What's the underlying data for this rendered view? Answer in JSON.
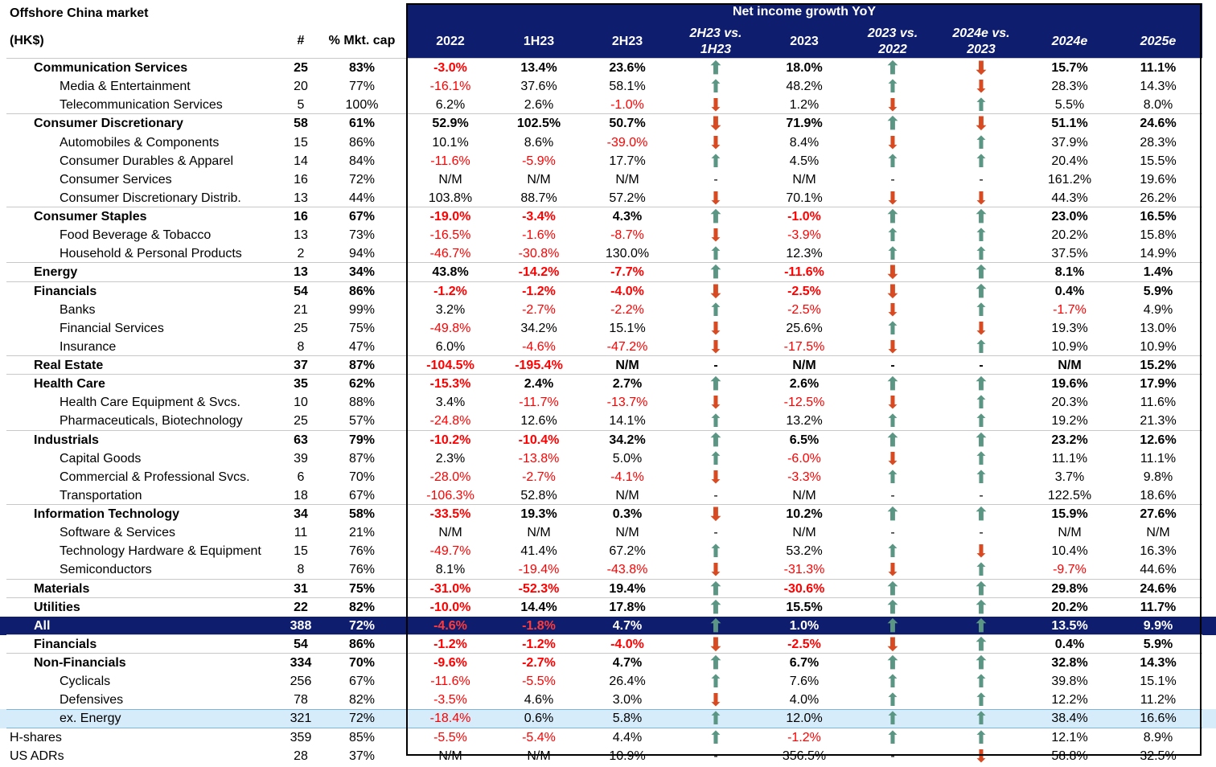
{
  "title": "Offshore China market",
  "unit": "(HK$)",
  "headers": {
    "count": "#",
    "mkt_cap": "% Mkt. cap",
    "super": "Net income growth YoY",
    "cols": [
      "2022",
      "1H23",
      "2H23",
      "2H23 vs.\n1H23",
      "2023",
      "2023 vs.\n2022",
      "2024e vs.\n2023",
      "2024e",
      "2025e"
    ]
  },
  "colors": {
    "header_bg": "#0f1d6e",
    "negative": "#ff0000",
    "up_arrow": "#5a9683",
    "down_arrow": "#d84a22",
    "highlight": "#d6ecfa"
  },
  "rows": [
    {
      "type": "sec",
      "label": "Communication Services",
      "count": "25",
      "mkt": "83%",
      "y2022": "-3.0%",
      "h1": "13.4%",
      "h2": "23.6%",
      "a1": "up",
      "y2023": "18.0%",
      "a2": "up",
      "a3": "down",
      "e24": "15.7%",
      "e25": "11.1%"
    },
    {
      "type": "sub",
      "label": "Media & Entertainment",
      "count": "20",
      "mkt": "77%",
      "y2022": "-16.1%",
      "h1": "37.6%",
      "h2": "58.1%",
      "a1": "up",
      "y2023": "48.2%",
      "a2": "up",
      "a3": "down",
      "e24": "28.3%",
      "e25": "14.3%"
    },
    {
      "type": "sub",
      "label": "Telecommunication Services",
      "count": "5",
      "mkt": "100%",
      "y2022": "6.2%",
      "h1": "2.6%",
      "h2": "-1.0%",
      "a1": "down",
      "y2023": "1.2%",
      "a2": "down",
      "a3": "up",
      "e24": "5.5%",
      "e25": "8.0%"
    },
    {
      "type": "sec",
      "label": "Consumer Discretionary",
      "count": "58",
      "mkt": "61%",
      "y2022": "52.9%",
      "h1": "102.5%",
      "h2": "50.7%",
      "a1": "down",
      "y2023": "71.9%",
      "a2": "up",
      "a3": "down",
      "e24": "51.1%",
      "e25": "24.6%"
    },
    {
      "type": "sub",
      "label": "Automobiles & Components",
      "count": "15",
      "mkt": "86%",
      "y2022": "10.1%",
      "h1": "8.6%",
      "h2": "-39.0%",
      "a1": "down",
      "y2023": "8.4%",
      "a2": "down",
      "a3": "up",
      "e24": "37.9%",
      "e25": "28.3%"
    },
    {
      "type": "sub",
      "label": "Consumer Durables & Apparel",
      "count": "14",
      "mkt": "84%",
      "y2022": "-11.6%",
      "h1": "-5.9%",
      "h2": "17.7%",
      "a1": "up",
      "y2023": "4.5%",
      "a2": "up",
      "a3": "up",
      "e24": "20.4%",
      "e25": "15.5%"
    },
    {
      "type": "sub",
      "label": "Consumer Services",
      "count": "16",
      "mkt": "72%",
      "y2022": "N/M",
      "h1": "N/M",
      "h2": "N/M",
      "a1": "-",
      "y2023": "N/M",
      "a2": "-",
      "a3": "-",
      "e24": "161.2%",
      "e25": "19.6%"
    },
    {
      "type": "sub",
      "label": "Consumer Discretionary Distrib.",
      "count": "13",
      "mkt": "44%",
      "y2022": "103.8%",
      "h1": "88.7%",
      "h2": "57.2%",
      "a1": "down",
      "y2023": "70.1%",
      "a2": "down",
      "a3": "down",
      "e24": "44.3%",
      "e25": "26.2%"
    },
    {
      "type": "sec",
      "label": "Consumer Staples",
      "count": "16",
      "mkt": "67%",
      "y2022": "-19.0%",
      "h1": "-3.4%",
      "h2": "4.3%",
      "a1": "up",
      "y2023": "-1.0%",
      "a2": "up",
      "a3": "up",
      "e24": "23.0%",
      "e25": "16.5%"
    },
    {
      "type": "sub",
      "label": "Food Beverage & Tobacco",
      "count": "13",
      "mkt": "73%",
      "y2022": "-16.5%",
      "h1": "-1.6%",
      "h2": "-8.7%",
      "a1": "down",
      "y2023": "-3.9%",
      "a2": "up",
      "a3": "up",
      "e24": "20.2%",
      "e25": "15.8%"
    },
    {
      "type": "sub",
      "label": "Household & Personal Products",
      "count": "2",
      "mkt": "94%",
      "y2022": "-46.7%",
      "h1": "-30.8%",
      "h2": "130.0%",
      "a1": "up",
      "y2023": "12.3%",
      "a2": "up",
      "a3": "up",
      "e24": "37.5%",
      "e25": "14.9%"
    },
    {
      "type": "sec",
      "label": "Energy",
      "count": "13",
      "mkt": "34%",
      "y2022": "43.8%",
      "h1": "-14.2%",
      "h2": "-7.7%",
      "a1": "up",
      "y2023": "-11.6%",
      "a2": "down",
      "a3": "up",
      "e24": "8.1%",
      "e25": "1.4%"
    },
    {
      "type": "sec",
      "label": "Financials",
      "count": "54",
      "mkt": "86%",
      "y2022": "-1.2%",
      "h1": "-1.2%",
      "h2": "-4.0%",
      "a1": "down",
      "y2023": "-2.5%",
      "a2": "down",
      "a3": "up",
      "e24": "0.4%",
      "e25": "5.9%"
    },
    {
      "type": "sub",
      "label": "Banks",
      "count": "21",
      "mkt": "99%",
      "y2022": "3.2%",
      "h1": "-2.7%",
      "h2": "-2.2%",
      "a1": "up",
      "y2023": "-2.5%",
      "a2": "down",
      "a3": "up",
      "e24": "-1.7%",
      "e25": "4.9%"
    },
    {
      "type": "sub",
      "label": "Financial Services",
      "count": "25",
      "mkt": "75%",
      "y2022": "-49.8%",
      "h1": "34.2%",
      "h2": "15.1%",
      "a1": "down",
      "y2023": "25.6%",
      "a2": "up",
      "a3": "down",
      "e24": "19.3%",
      "e25": "13.0%"
    },
    {
      "type": "sub",
      "label": "Insurance",
      "count": "8",
      "mkt": "47%",
      "y2022": "6.0%",
      "h1": "-4.6%",
      "h2": "-47.2%",
      "a1": "down",
      "y2023": "-17.5%",
      "a2": "down",
      "a3": "up",
      "e24": "10.9%",
      "e25": "10.9%"
    },
    {
      "type": "sec",
      "label": "Real Estate",
      "count": "37",
      "mkt": "87%",
      "y2022": "-104.5%",
      "h1": "-195.4%",
      "h2": "N/M",
      "a1": "-",
      "y2023": "N/M",
      "a2": "-",
      "a3": "-",
      "e24": "N/M",
      "e25": "15.2%"
    },
    {
      "type": "sec",
      "label": "Health Care",
      "count": "35",
      "mkt": "62%",
      "y2022": "-15.3%",
      "h1": "2.4%",
      "h2": "2.7%",
      "a1": "up",
      "y2023": "2.6%",
      "a2": "up",
      "a3": "up",
      "e24": "19.6%",
      "e25": "17.9%"
    },
    {
      "type": "sub",
      "label": "Health Care Equipment & Svcs.",
      "count": "10",
      "mkt": "88%",
      "y2022": "3.4%",
      "h1": "-11.7%",
      "h2": "-13.7%",
      "a1": "down",
      "y2023": "-12.5%",
      "a2": "down",
      "a3": "up",
      "e24": "20.3%",
      "e25": "11.6%"
    },
    {
      "type": "sub",
      "label": "Pharmaceuticals, Biotechnology",
      "count": "25",
      "mkt": "57%",
      "y2022": "-24.8%",
      "h1": "12.6%",
      "h2": "14.1%",
      "a1": "up",
      "y2023": "13.2%",
      "a2": "up",
      "a3": "up",
      "e24": "19.2%",
      "e25": "21.3%"
    },
    {
      "type": "sec",
      "label": "Industrials",
      "count": "63",
      "mkt": "79%",
      "y2022": "-10.2%",
      "h1": "-10.4%",
      "h2": "34.2%",
      "a1": "up",
      "y2023": "6.5%",
      "a2": "up",
      "a3": "up",
      "e24": "23.2%",
      "e25": "12.6%"
    },
    {
      "type": "sub",
      "label": "Capital Goods",
      "count": "39",
      "mkt": "87%",
      "y2022": "2.3%",
      "h1": "-13.8%",
      "h2": "5.0%",
      "a1": "up",
      "y2023": "-6.0%",
      "a2": "down",
      "a3": "up",
      "e24": "11.1%",
      "e25": "11.1%"
    },
    {
      "type": "sub",
      "label": "Commercial & Professional Svcs.",
      "count": "6",
      "mkt": "70%",
      "y2022": "-28.0%",
      "h1": "-2.7%",
      "h2": "-4.1%",
      "a1": "down",
      "y2023": "-3.3%",
      "a2": "up",
      "a3": "up",
      "e24": "3.7%",
      "e25": "9.8%"
    },
    {
      "type": "sub",
      "label": "Transportation",
      "count": "18",
      "mkt": "67%",
      "y2022": "-106.3%",
      "h1": "52.8%",
      "h2": "N/M",
      "a1": "-",
      "y2023": "N/M",
      "a2": "-",
      "a3": "-",
      "e24": "122.5%",
      "e25": "18.6%"
    },
    {
      "type": "sec",
      "label": "Information Technology",
      "count": "34",
      "mkt": "58%",
      "y2022": "-33.5%",
      "h1": "19.3%",
      "h2": "0.3%",
      "a1": "down",
      "y2023": "10.2%",
      "a2": "up",
      "a3": "up",
      "e24": "15.9%",
      "e25": "27.6%"
    },
    {
      "type": "sub",
      "label": "Software & Services",
      "count": "11",
      "mkt": "21%",
      "y2022": "N/M",
      "h1": "N/M",
      "h2": "N/M",
      "a1": "-",
      "y2023": "N/M",
      "a2": "-",
      "a3": "-",
      "e24": "N/M",
      "e25": "N/M"
    },
    {
      "type": "sub",
      "label": "Technology Hardware & Equipment",
      "count": "15",
      "mkt": "76%",
      "y2022": "-49.7%",
      "h1": "41.4%",
      "h2": "67.2%",
      "a1": "up",
      "y2023": "53.2%",
      "a2": "up",
      "a3": "down",
      "e24": "10.4%",
      "e25": "16.3%"
    },
    {
      "type": "sub",
      "label": "Semiconductors",
      "count": "8",
      "mkt": "76%",
      "y2022": "8.1%",
      "h1": "-19.4%",
      "h2": "-43.8%",
      "a1": "down",
      "y2023": "-31.3%",
      "a2": "down",
      "a3": "up",
      "e24": "-9.7%",
      "e25": "44.6%"
    },
    {
      "type": "sec",
      "label": "Materials",
      "count": "31",
      "mkt": "75%",
      "y2022": "-31.0%",
      "h1": "-52.3%",
      "h2": "19.4%",
      "a1": "up",
      "y2023": "-30.6%",
      "a2": "up",
      "a3": "up",
      "e24": "29.8%",
      "e25": "24.6%"
    },
    {
      "type": "sec",
      "label": "Utilities",
      "count": "22",
      "mkt": "82%",
      "y2022": "-10.0%",
      "h1": "14.4%",
      "h2": "17.8%",
      "a1": "up",
      "y2023": "15.5%",
      "a2": "up",
      "a3": "up",
      "e24": "20.2%",
      "e25": "11.7%"
    },
    {
      "type": "all",
      "label": "All",
      "count": "388",
      "mkt": "72%",
      "y2022": "-4.6%",
      "h1": "-1.8%",
      "h2": "4.7%",
      "a1": "up",
      "y2023": "1.0%",
      "a2": "up",
      "a3": "up",
      "e24": "13.5%",
      "e25": "9.9%"
    },
    {
      "type": "sec",
      "label": "Financials",
      "count": "54",
      "mkt": "86%",
      "y2022": "-1.2%",
      "h1": "-1.2%",
      "h2": "-4.0%",
      "a1": "down",
      "y2023": "-2.5%",
      "a2": "down",
      "a3": "up",
      "e24": "0.4%",
      "e25": "5.9%"
    },
    {
      "type": "sec",
      "label": "Non-Financials",
      "count": "334",
      "mkt": "70%",
      "y2022": "-9.6%",
      "h1": "-2.7%",
      "h2": "4.7%",
      "a1": "up",
      "y2023": "6.7%",
      "a2": "up",
      "a3": "up",
      "e24": "32.8%",
      "e25": "14.3%"
    },
    {
      "type": "sub",
      "label": "Cyclicals",
      "count": "256",
      "mkt": "67%",
      "y2022": "-11.6%",
      "h1": "-5.5%",
      "h2": "26.4%",
      "a1": "up",
      "y2023": "7.6%",
      "a2": "up",
      "a3": "up",
      "e24": "39.8%",
      "e25": "15.1%"
    },
    {
      "type": "sub",
      "label": "Defensives",
      "count": "78",
      "mkt": "82%",
      "y2022": "-3.5%",
      "h1": "4.6%",
      "h2": "3.0%",
      "a1": "down",
      "y2023": "4.0%",
      "a2": "up",
      "a3": "up",
      "e24": "12.2%",
      "e25": "11.2%"
    },
    {
      "type": "sub exen",
      "label": "ex. Energy",
      "count": "321",
      "mkt": "72%",
      "y2022": "-18.4%",
      "h1": "0.6%",
      "h2": "5.8%",
      "a1": "up",
      "y2023": "12.0%",
      "a2": "up",
      "a3": "up",
      "e24": "38.4%",
      "e25": "16.6%"
    },
    {
      "type": "top",
      "label": "H-shares",
      "count": "359",
      "mkt": "85%",
      "y2022": "-5.5%",
      "h1": "-5.4%",
      "h2": "4.4%",
      "a1": "up",
      "y2023": "-1.2%",
      "a2": "up",
      "a3": "up",
      "e24": "12.1%",
      "e25": "8.9%"
    },
    {
      "type": "top",
      "label": "US ADRs",
      "count": "28",
      "mkt": "37%",
      "y2022": "N/M",
      "h1": "N/M",
      "h2": "10.9%",
      "a1": "-",
      "y2023": "356.5%",
      "a2": "-",
      "a3": "down",
      "e24": "58.8%",
      "e25": "32.5%"
    }
  ]
}
